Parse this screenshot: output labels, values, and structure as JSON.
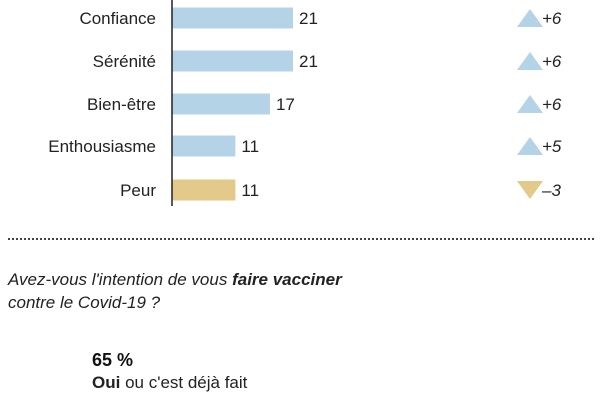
{
  "chart_data": {
    "type": "bar",
    "orientation": "horizontal",
    "categories": [
      "Confiance",
      "Sérénité",
      "Bien-être",
      "Enthousiasme",
      "Peur"
    ],
    "values": [
      21,
      21,
      17,
      11,
      11
    ],
    "changes": [
      "+6",
      "+6",
      "+6",
      "+5",
      "–3"
    ],
    "change_direction": [
      "up",
      "up",
      "up",
      "up",
      "down"
    ],
    "xlim": [
      0,
      24
    ],
    "colors": {
      "positive_bar": "#b5d3e7",
      "negative_bar": "#e3c98a",
      "up_triangle": "#b5d3e7",
      "down_triangle": "#e3c98a",
      "axis": "#222222"
    }
  },
  "question": {
    "before": "Avez-vous l'intention de vous ",
    "emphasis": "faire vacciner",
    "after": "contre le Covid-19 ?"
  },
  "answer": {
    "percent": "65 %",
    "emphasis": "Oui",
    "rest": " ou c'est déjà fait"
  }
}
